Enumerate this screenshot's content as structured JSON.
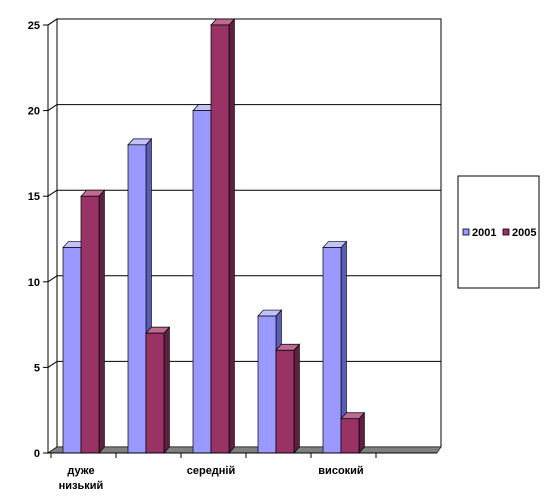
{
  "chart_data": {
    "type": "bar",
    "style": "3d-clustered-column",
    "categories": [
      [
        "дуже",
        "низький"
      ],
      [],
      [
        "середній"
      ],
      [],
      [
        "високий"
      ]
    ],
    "series": [
      {
        "name": "2001",
        "color": "#9999ff",
        "side_color": "#5b5bb8",
        "top_color": "#c2c2ff",
        "values": [
          12,
          18,
          20,
          8,
          12
        ]
      },
      {
        "name": "2005",
        "color": "#993366",
        "side_color": "#5e1f40",
        "top_color": "#bf6a93",
        "values": [
          15,
          7,
          25,
          6,
          2
        ]
      }
    ],
    "ylim": [
      0,
      25
    ],
    "yticks": [
      0,
      5,
      10,
      15,
      20,
      25
    ],
    "grid": true,
    "legend_position": "right",
    "floor_color": "#808080"
  }
}
